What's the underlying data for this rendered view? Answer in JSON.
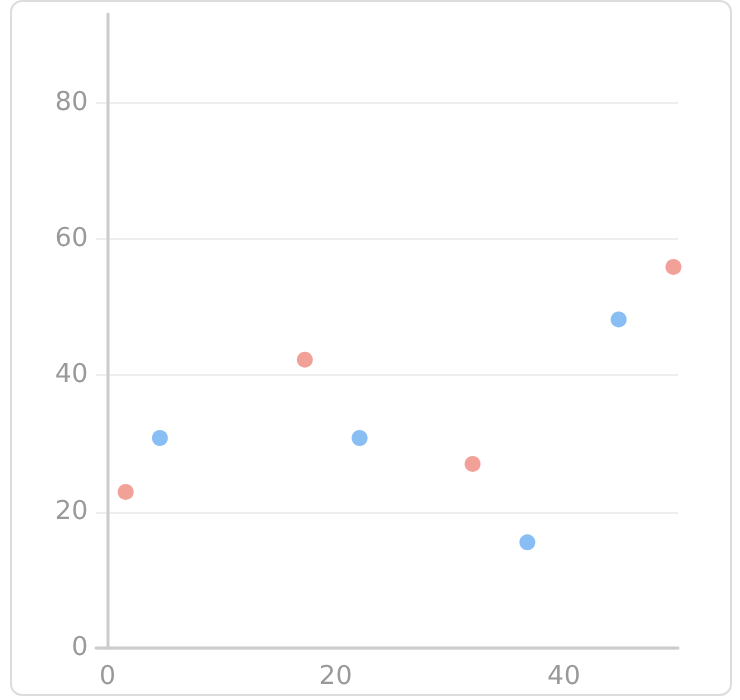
{
  "chart_data": {
    "type": "scatter",
    "series": [
      {
        "color": "#ee8a7e",
        "x": [
          1.6,
          17.3,
          32.0,
          49.6
        ],
        "values": [
          22.9,
          42.3,
          27.0,
          55.9
        ]
      },
      {
        "color": "#6aaef0",
        "x": [
          4.6,
          22.1,
          36.8,
          44.8
        ],
        "values": [
          30.8,
          30.8,
          15.5,
          48.2
        ]
      }
    ],
    "xlim": [
      -1,
      50
    ],
    "xticks": [
      0,
      20,
      40
    ],
    "ylim": [
      0,
      93
    ],
    "yticks": [
      0,
      20,
      40,
      60,
      80
    ],
    "grid": "y",
    "marker": "circle"
  }
}
